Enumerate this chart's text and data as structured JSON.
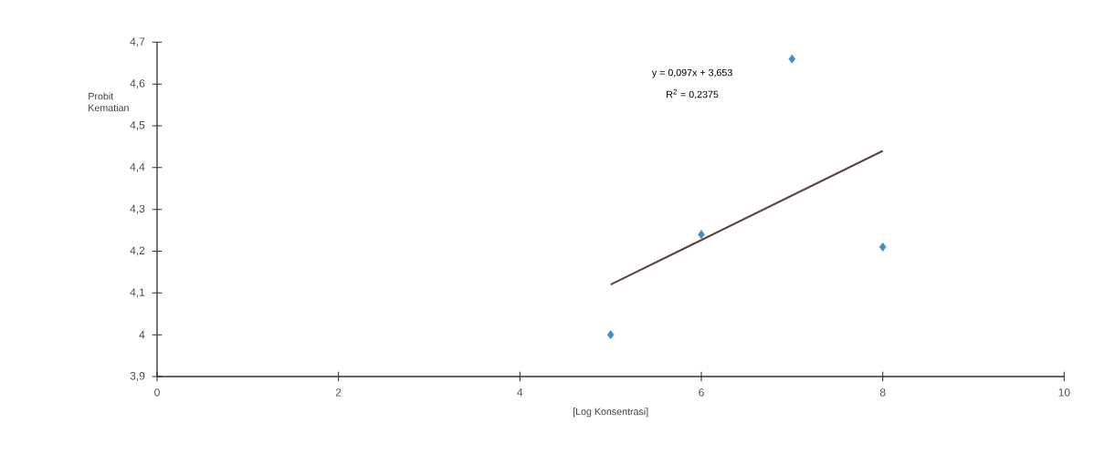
{
  "chart_data": {
    "type": "scatter",
    "xlabel": "[Log Konsentrasi]",
    "ylabel": "Probit Kematian",
    "x": [
      5,
      6,
      7,
      8
    ],
    "series": [
      {
        "color": "#3d8ec9",
        "marker": "diamond",
        "values": [
          4.0,
          4.24,
          4.66,
          4.21
        ]
      },
      {
        "type": "line",
        "color": "#574842",
        "x": [
          5,
          8
        ],
        "values": [
          4.12,
          4.44
        ]
      }
    ],
    "annotations": [
      "y = 0,097x + 3,653",
      "R$^{2}$ = 0,2375"
    ],
    "xlim": [
      0,
      10
    ],
    "xticks": [
      0,
      2,
      4,
      6,
      8,
      10
    ],
    "ylim": [
      3.9,
      4.7
    ],
    "yticks": [
      {
        "value": 3.9,
        "label": "3,9"
      },
      {
        "value": 4,
        "label": "4"
      },
      {
        "value": 4.1,
        "label": "4,1"
      },
      {
        "value": 4.2,
        "label": "4,2"
      },
      {
        "value": 4.3,
        "label": "4,3"
      },
      {
        "value": 4.4,
        "label": "4,4"
      },
      {
        "value": 4.5,
        "label": "4,5"
      },
      {
        "value": 4.6,
        "label": "4,6"
      },
      {
        "value": 4.7,
        "label": "4,7"
      }
    ],
    "grid": false
  }
}
